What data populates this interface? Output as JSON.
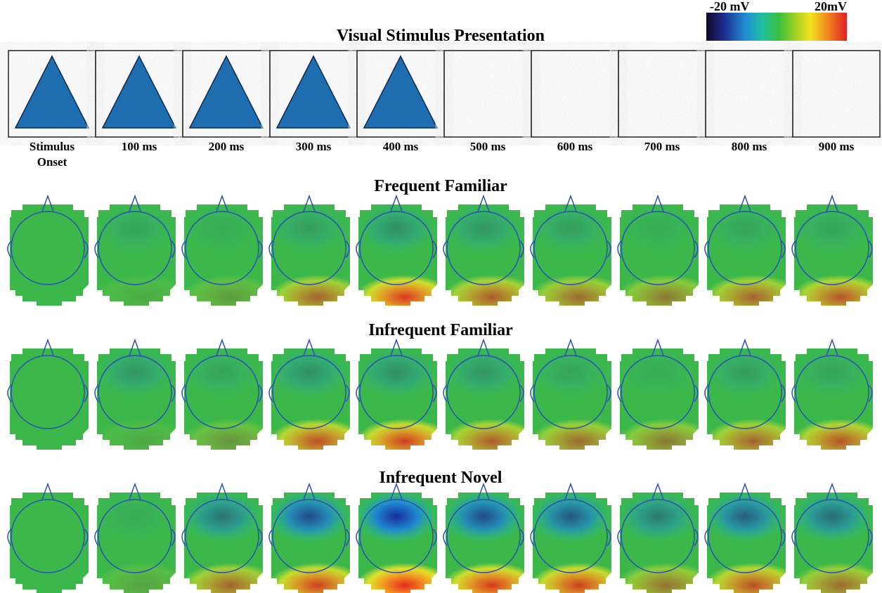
{
  "colorbar": {
    "min_label": "-20 mV",
    "max_label": "20mV"
  },
  "title": "Visual Stimulus Presentation",
  "time_labels": [
    "Stimulus Onset",
    "100 ms",
    "200 ms",
    "300 ms",
    "400 ms",
    "500 ms",
    "600 ms",
    "700 ms",
    "800 ms",
    "900 ms"
  ],
  "conditions": [
    "Frequent Familiar",
    "Infrequent Familiar",
    "Infrequent Novel"
  ]
}
